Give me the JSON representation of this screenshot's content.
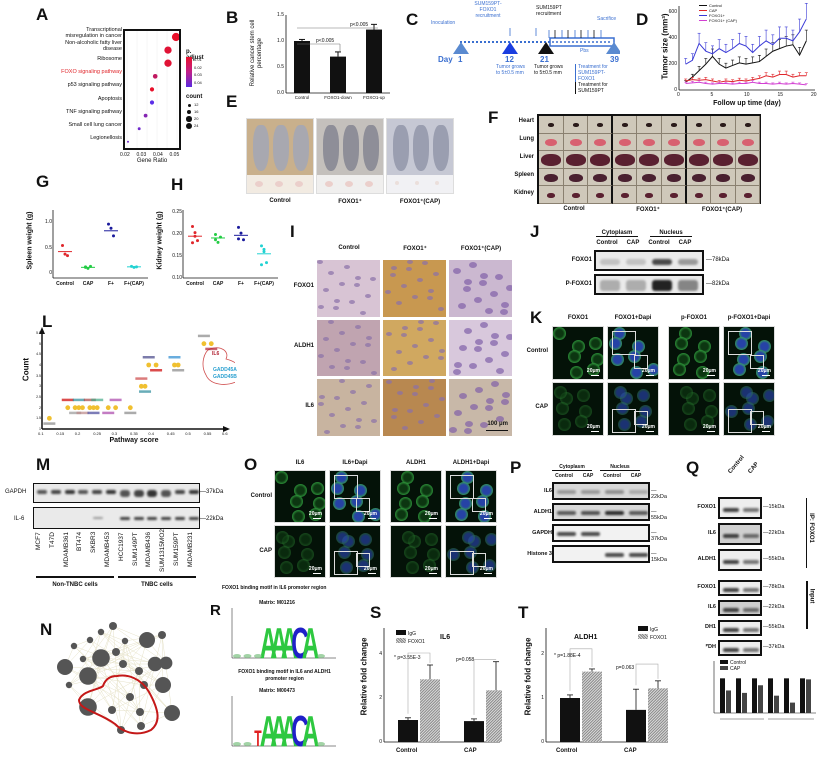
{
  "panels": {
    "A": {
      "label": "A",
      "terms": [
        "Transcriptional misregulation in cancer",
        "Non-alcoholic fatty liver disease",
        "Ribosome",
        "FOXO signaling pathway",
        "p53 signaling pathway",
        "Apoptosis",
        "TNF signaling pathway",
        "Small cell lung cancer",
        "Legionellosis"
      ],
      "term_lines": [
        [
          "Transcriptional",
          "misregulation in cancer"
        ],
        [
          "Non-alcoholic fatty liver",
          "disease"
        ],
        [
          "Ribosome"
        ],
        [
          "FOXO signaling pathway"
        ],
        [
          "p53 signaling pathway"
        ],
        [
          "Apoptosis"
        ],
        [
          "TNF signaling pathway"
        ],
        [
          "Small cell lung cancer"
        ],
        [
          "Legionellosis"
        ]
      ],
      "highlight_term": "FOXO signaling pathway",
      "highlight_color": "#e0262b",
      "xlabel": "Gene Ratio",
      "xticks": [
        "0.02",
        "0.03",
        "0.04",
        "0.05"
      ],
      "legend_color_title": "p. adjust",
      "legend_color_ticks": [
        "0.01",
        "0.02",
        "0.03",
        "0.04"
      ],
      "legend_size_title": "count",
      "legend_size_ticks": [
        "12",
        "16",
        "20",
        "24"
      ]
    },
    "B": {
      "label": "B",
      "ylabel": "Relative cancer stem cell percentage",
      "yticks": [
        "0.0",
        "0.5",
        "1.0",
        "1.5"
      ],
      "categories": [
        "Control",
        "FOXO1-down",
        "FOXO1-up"
      ],
      "sig1": "p<0.005",
      "sig2": "p<0.005",
      "star": "*"
    },
    "C": {
      "label": "C",
      "day_label": "Day",
      "days": [
        "1",
        "12",
        "21",
        "39"
      ],
      "inoculation": "Inoculation",
      "recruit_foxo1": [
        "SUM159PT-",
        "FOXO1",
        "recruitment"
      ],
      "recruit_sum": [
        "SUM159PT",
        "recruitment"
      ],
      "sacrifice": "Sacrifice",
      "pbs": "Pbs",
      "grow1": [
        "Tumor grows",
        "to 5±0.5 mm"
      ],
      "grow2": [
        "Tumor grows",
        "to 5±0.5 mm"
      ],
      "treat_foxo1": [
        "Treatment for",
        "SUM159PT-FOXO1"
      ],
      "treat_sum": [
        "Treatment for",
        "SUM159PT"
      ]
    },
    "D": {
      "label": "D",
      "ylabel": "Tumor size (mm³)",
      "xlabel": "Follow up time (day)",
      "legend": [
        "Control",
        "CAP",
        "FOXO1+",
        "FOXO1+ (CAP)"
      ],
      "yticks": [
        "0",
        "200",
        "400",
        "600"
      ],
      "xticks": [
        "0",
        "5",
        "10",
        "15",
        "20"
      ]
    },
    "E": {
      "label": "E",
      "groups": [
        "Control",
        "FOXO1⁺",
        "FOXO1⁺(CAP)"
      ]
    },
    "F": {
      "label": "F",
      "organs": [
        "Heart",
        "Lung",
        "Liver",
        "Spleen",
        "Kidney"
      ],
      "groups": [
        "Control",
        "FOXO1⁺",
        "FOXO1⁺(CAP)"
      ]
    },
    "G": {
      "label": "G",
      "ylabel": "Spleen weight (g)",
      "yticks": [
        "0",
        "0.5",
        "1.0"
      ],
      "categories": [
        "Control",
        "CAP",
        "F+",
        "F+(CAP)"
      ]
    },
    "H": {
      "label": "H",
      "ylabel": "Kidney weight (g)",
      "yticks": [
        "0.10",
        "0.15",
        "0.20",
        "0.25"
      ],
      "categories": [
        "Control",
        "CAP",
        "F+",
        "F+(CAP)"
      ]
    },
    "I": {
      "label": "I",
      "cols": [
        "Control",
        "FOXO1⁺",
        "FOXO1⁺(CAP)"
      ],
      "rows": [
        "FOXO1",
        "ALDH1",
        "IL6"
      ],
      "scalebar": "100 μm"
    },
    "J": {
      "label": "J",
      "fractions": [
        "Cytoplasm",
        "Nucleus"
      ],
      "lanes": [
        "Control",
        "CAP",
        "Control",
        "CAP"
      ],
      "rows": [
        "FOXO1",
        "P-FOXO1"
      ],
      "markers": [
        "78kDa",
        "82kDa"
      ]
    },
    "K": {
      "label": "K",
      "cols": [
        "FOXO1",
        "FOXO1+Dapi",
        "p-FOXO1",
        "p-FOXO1+Dapi"
      ],
      "rows": [
        "Control",
        "CAP"
      ],
      "scalebar": "20μm"
    },
    "L": {
      "label": "L",
      "ylabel": "Count",
      "xlabel": "Pathway score",
      "yticks": [
        "1",
        "1.5",
        "2",
        "2.5",
        "3",
        "3.5",
        "4",
        "4.5",
        "5",
        "5.5"
      ],
      "xticks": [
        "0.1",
        "0.15",
        "0.2",
        "0.25",
        "0.3",
        "0.35",
        "0.4",
        "0.45",
        "0.5",
        "0.55",
        "0.6"
      ],
      "highlight": [
        "IL6",
        "GADD45A",
        "GADD45B"
      ]
    },
    "M": {
      "label": "M",
      "rows": [
        "GAPDH",
        "IL-6"
      ],
      "markers": [
        "37kDa",
        "22kDa"
      ],
      "lanes": [
        "MCF7",
        "T47D",
        "MDAMB361",
        "BT474",
        "SKBR3",
        "MDAMB453",
        "HCC1937",
        "SUM149PT",
        "MDAMB436",
        "SUM1315MO2",
        "SUM159PT",
        "MDAMB231"
      ],
      "groups": [
        "Non-TNBC cells",
        "TNBC cells"
      ]
    },
    "N": {
      "label": "N"
    },
    "O": {
      "label": "O",
      "cols": [
        "IL6",
        "IL6+Dapi",
        "ALDH1",
        "ALDH1+Dapi"
      ],
      "rows": [
        "Control",
        "CAP"
      ],
      "scalebar": "20μm"
    },
    "P": {
      "label": "P",
      "fractions": [
        "Cytoplasm",
        "Nucleus"
      ],
      "lanes": [
        "Control",
        "CAP",
        "Control",
        "CAP"
      ],
      "rows": [
        "IL6",
        "ALDH1",
        "GAPDH",
        "Histone 3"
      ],
      "markers": [
        "22kDa",
        "55kDa",
        "37kDa",
        "15kDa"
      ]
    },
    "Q": {
      "label": "Q",
      "lanes": [
        "Control",
        "CAP"
      ],
      "ip_rows": [
        "FOXO1",
        "IL6",
        "ALDH1"
      ],
      "ip_markers": [
        "15kDa",
        "22kDa",
        "55kDa"
      ],
      "ip_label": "IP: FOXO1",
      "input_rows": [
        "FOXO1",
        "IL6",
        "DH1",
        "ᴾDH"
      ],
      "input_markers": [
        "78kDa",
        "22kDa",
        "55kDa",
        "37kDa"
      ],
      "input_label": "Input",
      "legend": [
        "Control",
        "CAP"
      ]
    },
    "R": {
      "label": "R",
      "title1": "FOXO1 binding motif in IL6 promoter region",
      "matrix1": "Matrix: M01216",
      "title2": [
        "FOXO1 binding motif in IL6 and ALDH1",
        "promoter region"
      ],
      "matrix2": "Matrix: M00473",
      "seq1": "AAACA",
      "seq2": "TAAACA"
    },
    "S": {
      "label": "S",
      "title": "IL6",
      "ylabel": "Relative fold change",
      "yticks": [
        "0",
        "2",
        "4"
      ],
      "legend": [
        "IgG",
        "FOXO1"
      ],
      "categories": [
        "Control",
        "CAP"
      ],
      "p1": "* p=3.55E-3",
      "p2": "p=0.058"
    },
    "T": {
      "label": "T",
      "title": "ALDH1",
      "ylabel": "Relative fold change",
      "yticks": [
        "0",
        "1",
        "2"
      ],
      "legend": [
        "IgG",
        "FOXO1"
      ],
      "categories": [
        "Control",
        "CAP"
      ],
      "p1": "* p=1.88E-4",
      "p2": "p=0.063"
    }
  },
  "colors": {
    "control": "#111111",
    "cap": "#e0262b",
    "foxo1plus": "#3a3ad6",
    "foxo1cap": "#d23fd2",
    "G_control": "#e0262b",
    "G_cap": "#22cc44",
    "G_fplus": "#1a1a9c",
    "G_fcap": "#22d2d2",
    "timeline_blue": "#3a6fd0",
    "fluor_green": "#38c040",
    "dapi_blue": "#2a4ab0"
  },
  "chart_data": [
    {
      "panel": "A",
      "type": "scatter",
      "title": "",
      "xlabel": "Gene Ratio",
      "ylabel": "",
      "categories": [
        "Transcriptional misregulation in cancer",
        "Non-alcoholic fatty liver disease",
        "Ribosome",
        "FOXO signaling pathway",
        "p53 signaling pathway",
        "Apoptosis",
        "TNF signaling pathway",
        "Small cell lung cancer",
        "Legionellosis"
      ],
      "x": [
        0.05,
        0.045,
        0.045,
        0.037,
        0.035,
        0.035,
        0.031,
        0.027,
        0.02
      ],
      "count": [
        24,
        22,
        22,
        16,
        15,
        15,
        14,
        12,
        10
      ],
      "p_adjust": [
        0.01,
        0.012,
        0.012,
        0.02,
        0.01,
        0.045,
        0.035,
        0.04,
        0.04
      ],
      "xlim": [
        0.02,
        0.05
      ]
    },
    {
      "panel": "B",
      "type": "bar",
      "categories": [
        "Control",
        "FOXO1-down",
        "FOXO1-up"
      ],
      "values": [
        1.0,
        0.7,
        1.22
      ],
      "errors": [
        0.03,
        0.09,
        0.1
      ],
      "ylabel": "Relative cancer stem cell percentage",
      "ylim": [
        0,
        1.5
      ]
    },
    {
      "panel": "D",
      "type": "line",
      "xlabel": "Follow up time (day)",
      "ylabel": "Tumor size (mm³)",
      "x": [
        1,
        2,
        3,
        4,
        5,
        6,
        7,
        8,
        9,
        10,
        11,
        12,
        13,
        14,
        15,
        16,
        17,
        18,
        19
      ],
      "series": [
        {
          "name": "Control",
          "values": [
            60,
            100,
            150,
            200,
            260,
            200,
            170,
            190,
            210,
            200,
            210,
            220,
            260,
            300,
            320,
            340,
            350,
            270,
            380
          ]
        },
        {
          "name": "CAP",
          "values": [
            70,
            80,
            75,
            80,
            70,
            60,
            70,
            65,
            75,
            70,
            80,
            90,
            110,
            100,
            120,
            120,
            100,
            110,
            110
          ]
        },
        {
          "name": "FOXO1+",
          "values": [
            200,
            230,
            360,
            300,
            280,
            320,
            290,
            320,
            360,
            340,
            290,
            340,
            380,
            350,
            400,
            400,
            380,
            450,
            550
          ]
        },
        {
          "name": "FOXO1+ (CAP)",
          "values": [
            50,
            55,
            60,
            50,
            45,
            50,
            50,
            45,
            50,
            50,
            60,
            50,
            50,
            45,
            50,
            45,
            50,
            45,
            40
          ]
        }
      ],
      "ylim": [
        0,
        650
      ],
      "xlim": [
        0,
        20
      ]
    },
    {
      "panel": "G",
      "type": "scatter",
      "categories": [
        "Control",
        "CAP",
        "F+",
        "F+(CAP)"
      ],
      "means": [
        0.42,
        0.11,
        0.83,
        0.12
      ],
      "ylabel": "Spleen weight (g)",
      "ylim": [
        -0.1,
        1.2
      ]
    },
    {
      "panel": "H",
      "type": "scatter",
      "categories": [
        "Control",
        "CAP",
        "F+",
        "F+(CAP)"
      ],
      "means": [
        0.195,
        0.191,
        0.197,
        0.155
      ],
      "ylabel": "Kidney weight (g)",
      "ylim": [
        0.1,
        0.25
      ]
    },
    {
      "panel": "S",
      "type": "bar",
      "title": "IL6",
      "categories": [
        "Control",
        "CAP"
      ],
      "series": [
        {
          "name": "IgG",
          "values": [
            1.0,
            0.95
          ]
        },
        {
          "name": "FOXO1",
          "values": [
            2.85,
            2.35
          ]
        }
      ],
      "errors": [
        {
          "name": "IgG",
          "values": [
            0.1,
            0.1
          ]
        },
        {
          "name": "FOXO1",
          "values": [
            0.65,
            1.3
          ]
        }
      ],
      "ylabel": "Relative fold change",
      "ylim": [
        0,
        5
      ]
    },
    {
      "panel": "T",
      "type": "bar",
      "title": "ALDH1",
      "categories": [
        "Control",
        "CAP"
      ],
      "series": [
        {
          "name": "IgG",
          "values": [
            1.0,
            0.73
          ]
        },
        {
          "name": "FOXO1",
          "values": [
            1.6,
            1.22
          ]
        }
      ],
      "errors": [
        {
          "name": "IgG",
          "values": [
            0.07,
            0.47
          ]
        },
        {
          "name": "FOXO1",
          "values": [
            0.06,
            0.17
          ]
        }
      ],
      "ylabel": "Relative fold change",
      "ylim": [
        0,
        2.5
      ]
    },
    {
      "panel": "Q-quant",
      "type": "bar",
      "categories": [
        "FOXO1 (IP)",
        "IL-6 (IP)",
        "ALDH1 (IP)",
        "FOXO1 (Input)",
        "IL-6 (Input)",
        "ALDH1 (Input)"
      ],
      "series": [
        {
          "name": "Control",
          "values": [
            1.0,
            1.0,
            1.0,
            1.0,
            1.0,
            1.0
          ]
        },
        {
          "name": "CAP",
          "values": [
            0.65,
            0.58,
            0.8,
            0.5,
            0.3,
            0.97
          ]
        }
      ],
      "ylim": [
        0,
        1.5
      ]
    }
  ]
}
